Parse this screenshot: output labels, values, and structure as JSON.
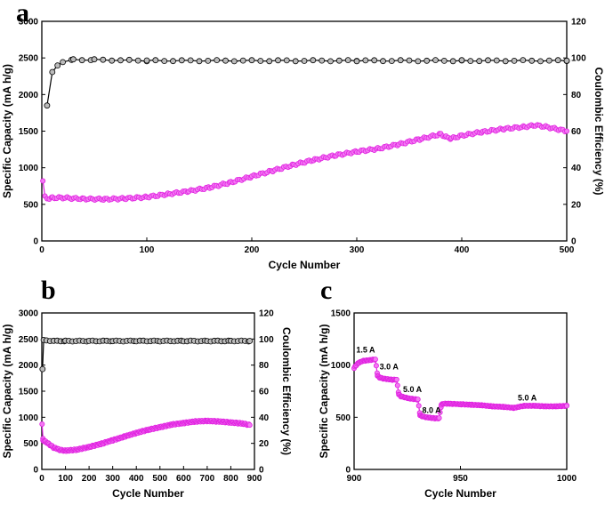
{
  "chart_data": [
    {
      "panel": "a",
      "type": "scatter",
      "xlabel": "Cycle Number",
      "ylabel": "Specific Capacity (mA h/g)",
      "y2label": "Coulombic Efficiency (%)",
      "xlim": [
        0,
        500
      ],
      "ylim": [
        0,
        3000
      ],
      "y2lim": [
        0,
        120
      ],
      "xticks": [
        0,
        100,
        200,
        300,
        400,
        500
      ],
      "yticks": [
        0,
        500,
        1000,
        1500,
        2000,
        2500,
        3000
      ],
      "y2ticks": [
        0,
        20,
        40,
        60,
        80,
        100,
        120
      ],
      "series": [
        {
          "axis": "left",
          "color": "#e020e0",
          "x": [
            1,
            3,
            5,
            10,
            20,
            40,
            60,
            80,
            100,
            120,
            140,
            160,
            180,
            200,
            220,
            240,
            260,
            280,
            300,
            320,
            340,
            360,
            380,
            385,
            390,
            400,
            420,
            440,
            460,
            470,
            480,
            490,
            500
          ],
          "y": [
            820,
            600,
            580,
            590,
            590,
            575,
            570,
            580,
            600,
            640,
            680,
            730,
            800,
            880,
            960,
            1040,
            1110,
            1170,
            1220,
            1260,
            1320,
            1390,
            1460,
            1420,
            1400,
            1440,
            1490,
            1530,
            1560,
            1580,
            1560,
            1530,
            1500
          ]
        },
        {
          "axis": "right",
          "color": "#000000",
          "x": [
            5,
            10,
            15,
            20,
            30,
            50,
            100,
            200,
            300,
            400,
            500
          ],
          "y": [
            74,
            92,
            96,
            98,
            99,
            99,
            98.5,
            98.5,
            98.5,
            98.5,
            98.5
          ]
        }
      ]
    },
    {
      "panel": "b",
      "type": "scatter",
      "xlabel": "Cycle Number",
      "ylabel": "Specific Capacity (mA h/g)",
      "y2label": "Coulombic Efficiency (%)",
      "xlim": [
        0,
        900
      ],
      "ylim": [
        0,
        3000
      ],
      "y2lim": [
        0,
        120
      ],
      "xticks": [
        0,
        100,
        200,
        300,
        400,
        500,
        600,
        700,
        800,
        900
      ],
      "yticks": [
        0,
        500,
        1000,
        1500,
        2000,
        2500,
        3000
      ],
      "y2ticks": [
        0,
        20,
        40,
        60,
        80,
        100,
        120
      ],
      "series": [
        {
          "axis": "left",
          "color": "#e020e0",
          "x": [
            1,
            5,
            20,
            50,
            80,
            100,
            150,
            200,
            250,
            300,
            350,
            400,
            450,
            500,
            550,
            600,
            650,
            700,
            750,
            800,
            850,
            880
          ],
          "y": [
            870,
            560,
            520,
            420,
            370,
            360,
            380,
            430,
            490,
            560,
            630,
            700,
            760,
            810,
            860,
            890,
            920,
            930,
            920,
            900,
            880,
            850
          ]
        },
        {
          "axis": "right",
          "color": "#000000",
          "x": [
            3,
            8,
            20,
            50,
            100,
            200,
            300,
            400,
            500,
            600,
            700,
            800,
            880
          ],
          "y": [
            77,
            99,
            99,
            98.5,
            98.5,
            98.5,
            98.5,
            98.5,
            98.5,
            98.5,
            98.5,
            98.5,
            98.5
          ]
        }
      ]
    },
    {
      "panel": "c",
      "type": "scatter",
      "xlabel": "Cycle Number",
      "ylabel": "Specific Capacity (mA h/g)",
      "xlim": [
        900,
        1000
      ],
      "ylim": [
        0,
        1500
      ],
      "xticks": [
        900,
        950,
        1000
      ],
      "yticks": [
        0,
        500,
        1000,
        1500
      ],
      "annotations": [
        {
          "text": "1.5 A",
          "x": 901,
          "y": 1120
        },
        {
          "text": "3.0 A",
          "x": 912,
          "y": 960
        },
        {
          "text": "5.0 A",
          "x": 923,
          "y": 740
        },
        {
          "text": "8.0 A",
          "x": 932,
          "y": 540
        },
        {
          "text": "5.0 A",
          "x": 977,
          "y": 660
        }
      ],
      "series": [
        {
          "axis": "left",
          "color": "#e020e0",
          "x": [
            900,
            901,
            902,
            904,
            906,
            908,
            910,
            911,
            912,
            914,
            916,
            918,
            920,
            921,
            922,
            924,
            926,
            928,
            930,
            931,
            932,
            934,
            936,
            938,
            940,
            941,
            942,
            945,
            950,
            955,
            960,
            965,
            970,
            975,
            980,
            985,
            990,
            995,
            1000
          ],
          "y": [
            970,
            1000,
            1020,
            1040,
            1045,
            1050,
            1055,
            900,
            880,
            870,
            865,
            860,
            860,
            720,
            700,
            690,
            680,
            675,
            670,
            520,
            510,
            500,
            495,
            490,
            490,
            620,
            630,
            630,
            625,
            620,
            615,
            605,
            600,
            590,
            610,
            610,
            605,
            605,
            610
          ]
        }
      ]
    }
  ],
  "panel_labels": [
    "a",
    "b",
    "c"
  ]
}
